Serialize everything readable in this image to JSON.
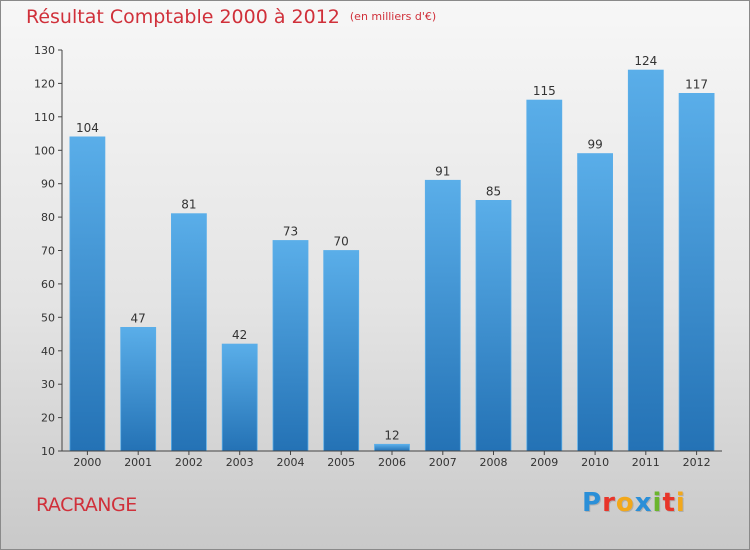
{
  "colors": {
    "bar": "#3a8fd6",
    "bar_light": "#5aaee9",
    "bar_dark": "#2472b5",
    "title": "#d0303a",
    "axis": "#444444"
  },
  "header": {
    "title": "Résultat Comptable 2000 à 2012",
    "subtitle": "(en milliers d'€)"
  },
  "footer": {
    "commune": "RACRANGE",
    "logo_letters": [
      {
        "ch": "P",
        "color": "#2a8fd8"
      },
      {
        "ch": "r",
        "color": "#e8352a"
      },
      {
        "ch": "o",
        "color": "#f2a81b"
      },
      {
        "ch": "x",
        "color": "#2a8fd8"
      },
      {
        "ch": "i",
        "color": "#6bb52c"
      },
      {
        "ch": "t",
        "color": "#e8352a"
      },
      {
        "ch": "i",
        "color": "#f2a81b"
      }
    ]
  },
  "chart_data": {
    "type": "bar",
    "title": "Résultat Comptable 2000 à 2012",
    "subtitle": "(en milliers d'€)",
    "xlabel": "",
    "ylabel": "",
    "categories": [
      "2000",
      "2001",
      "2002",
      "2003",
      "2004",
      "2005",
      "2006",
      "2007",
      "2008",
      "2009",
      "2010",
      "2011",
      "2012"
    ],
    "values": [
      104,
      47,
      81,
      42,
      73,
      70,
      12,
      91,
      85,
      115,
      99,
      124,
      117
    ],
    "ylim": [
      10,
      130
    ],
    "yticks": [
      10,
      20,
      30,
      40,
      50,
      60,
      70,
      80,
      90,
      100,
      110,
      120,
      130
    ],
    "grid": false,
    "legend": "none"
  }
}
